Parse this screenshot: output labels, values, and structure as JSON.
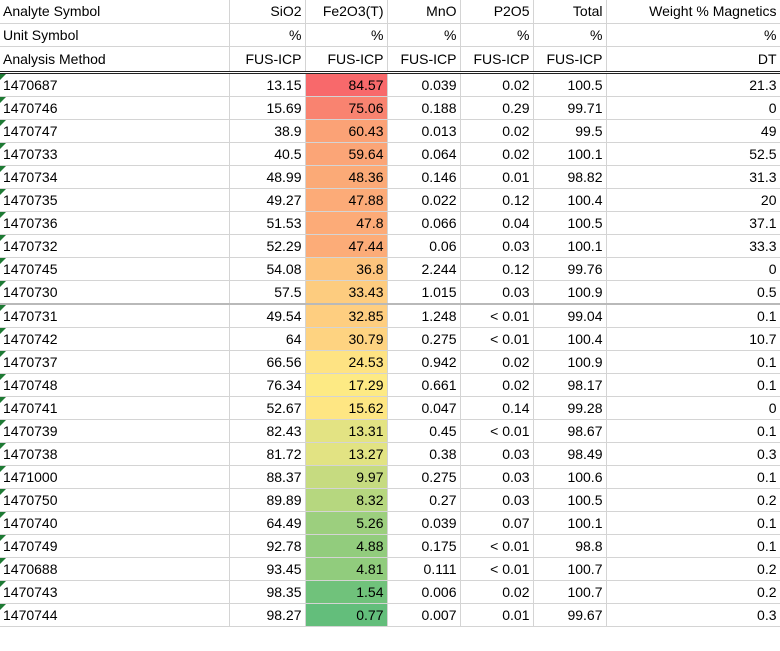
{
  "headers": [
    [
      "Analyte Symbol",
      "SiO2",
      "Fe2O3(T)",
      "MnO",
      "P2O5",
      "Total",
      "Weight % Magnetics"
    ],
    [
      "Unit Symbol",
      "%",
      "%",
      "%",
      "%",
      "%",
      "%"
    ],
    [
      "Analysis Method",
      "FUS-ICP",
      "FUS-ICP",
      "FUS-ICP",
      "FUS-ICP",
      "FUS-ICP",
      "DT"
    ]
  ],
  "rows": [
    [
      "1470687",
      "13.15",
      "84.57",
      "0.039",
      "0.02",
      "100.5",
      "21.3"
    ],
    [
      "1470746",
      "15.69",
      "75.06",
      "0.188",
      "0.29",
      "99.71",
      "0"
    ],
    [
      "1470747",
      "38.9",
      "60.43",
      "0.013",
      "0.02",
      "99.5",
      "49"
    ],
    [
      "1470733",
      "40.5",
      "59.64",
      "0.064",
      "0.02",
      "100.1",
      "52.5"
    ],
    [
      "1470734",
      "48.99",
      "48.36",
      "0.146",
      "0.01",
      "98.82",
      "31.3"
    ],
    [
      "1470735",
      "49.27",
      "47.88",
      "0.022",
      "0.12",
      "100.4",
      "20"
    ],
    [
      "1470736",
      "51.53",
      "47.8",
      "0.066",
      "0.04",
      "100.5",
      "37.1"
    ],
    [
      "1470732",
      "52.29",
      "47.44",
      "0.06",
      "0.03",
      "100.1",
      "33.3"
    ],
    [
      "1470745",
      "54.08",
      "36.8",
      "2.244",
      "0.12",
      "99.76",
      "0"
    ],
    [
      "1470730",
      "57.5",
      "33.43",
      "1.015",
      "0.03",
      "100.9",
      "0.5"
    ],
    [
      "1470731",
      "49.54",
      "32.85",
      "1.248",
      "< 0.01",
      "99.04",
      "0.1"
    ],
    [
      "1470742",
      "64",
      "30.79",
      "0.275",
      "< 0.01",
      "100.4",
      "10.7"
    ],
    [
      "1470737",
      "66.56",
      "24.53",
      "0.942",
      "0.02",
      "100.9",
      "0.1"
    ],
    [
      "1470748",
      "76.34",
      "17.29",
      "0.661",
      "0.02",
      "98.17",
      "0.1"
    ],
    [
      "1470741",
      "52.67",
      "15.62",
      "0.047",
      "0.14",
      "99.28",
      "0"
    ],
    [
      "1470739",
      "82.43",
      "13.31",
      "0.45",
      "< 0.01",
      "98.67",
      "0.1"
    ],
    [
      "1470738",
      "81.72",
      "13.27",
      "0.38",
      "0.03",
      "98.49",
      "0.3"
    ],
    [
      "1471000",
      "88.37",
      "9.97",
      "0.275",
      "0.03",
      "100.6",
      "0.1"
    ],
    [
      "1470750",
      "89.89",
      "8.32",
      "0.27",
      "0.03",
      "100.5",
      "0.2"
    ],
    [
      "1470740",
      "64.49",
      "5.26",
      "0.039",
      "0.07",
      "100.1",
      "0.1"
    ],
    [
      "1470749",
      "92.78",
      "4.88",
      "0.175",
      "< 0.01",
      "98.8",
      "0.1"
    ],
    [
      "1470688",
      "93.45",
      "4.81",
      "0.111",
      "< 0.01",
      "100.7",
      "0.2"
    ],
    [
      "1470743",
      "98.35",
      "1.54",
      "0.006",
      "0.02",
      "100.7",
      "0.2"
    ],
    [
      "1470744",
      "98.27",
      "0.77",
      "0.007",
      "0.01",
      "99.67",
      "0.3"
    ]
  ],
  "fe_colors": [
    "#f8696b",
    "#f98370",
    "#fba276",
    "#fba577",
    "#fbaa77",
    "#fcab78",
    "#fcab78",
    "#fcac78",
    "#fdc47d",
    "#fdcc7f",
    "#fece80",
    "#fed381",
    "#fee383",
    "#fdea84",
    "#fee683",
    "#e3e383",
    "#e2e383",
    "#c6db80",
    "#b6d77f",
    "#9ccf7e",
    "#92cc7d",
    "#91cc7d",
    "#70c27b",
    "#63be7b"
  ]
}
